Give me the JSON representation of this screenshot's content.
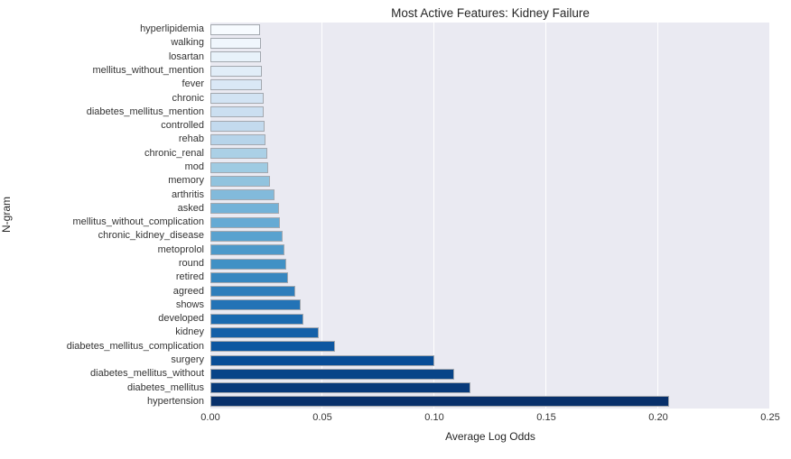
{
  "colors": {
    "figure_bg": "#ffffff",
    "plot_bg": "#eaeaf2",
    "gridline": "#ffffff",
    "bar_edge": "#a3a8af",
    "title_text": "#262626",
    "tick_text": "#333333"
  },
  "chart_data": {
    "type": "bar",
    "orientation": "horizontal",
    "title": "Most Active Features: Kidney Failure",
    "xlabel": "Average Log Odds",
    "ylabel": "N-gram",
    "xlim": [
      0,
      0.25
    ],
    "grid": true,
    "legend": null,
    "x_ticks": {
      "labels": [
        "0.00",
        "0.05",
        "0.10",
        "0.15",
        "0.20",
        "0.25"
      ],
      "values": [
        0,
        0.05,
        0.1,
        0.15,
        0.2,
        0.25
      ]
    },
    "categories": [
      "hyperlipidemia",
      "walking",
      "losartan",
      "mellitus_without_mention",
      "fever",
      "chronic",
      "diabetes_mellitus_mention",
      "controlled",
      "rehab",
      "chronic_renal",
      "mod",
      "memory",
      "arthritis",
      "asked",
      "mellitus_without_complication",
      "chronic_kidney_disease",
      "metoprolol",
      "round",
      "retired",
      "agreed",
      "shows",
      "developed",
      "kidney",
      "diabetes_mellitus_complication",
      "surgery",
      "diabetes_mellitus_without",
      "diabetes_mellitus",
      "hypertension"
    ],
    "values": [
      0.022,
      0.0225,
      0.0225,
      0.023,
      0.023,
      0.0239,
      0.0239,
      0.0243,
      0.0247,
      0.0253,
      0.0257,
      0.0267,
      0.0288,
      0.0305,
      0.031,
      0.0322,
      0.0331,
      0.0338,
      0.0345,
      0.0381,
      0.0404,
      0.0417,
      0.0483,
      0.0557,
      0.1,
      0.109,
      0.116,
      0.205
    ],
    "bar_colors": [
      "#f7fbff",
      "#f0f6fd",
      "#e8f2fa",
      "#e1edf8",
      "#dae8f6",
      "#d2e3f3",
      "#cbdff1",
      "#c3daee",
      "#b7d4ea",
      "#abd0e6",
      "#9fcbe2",
      "#91c3de",
      "#82badb",
      "#73b2d8",
      "#65aad4",
      "#59a2cf",
      "#4d99ca",
      "#4191c5",
      "#3787c0",
      "#2d7dbb",
      "#2373b6",
      "#1b6aaf",
      "#1460a8",
      "#0d57a1",
      "#084d97",
      "#084488",
      "#083a7a",
      "#08306b"
    ]
  }
}
